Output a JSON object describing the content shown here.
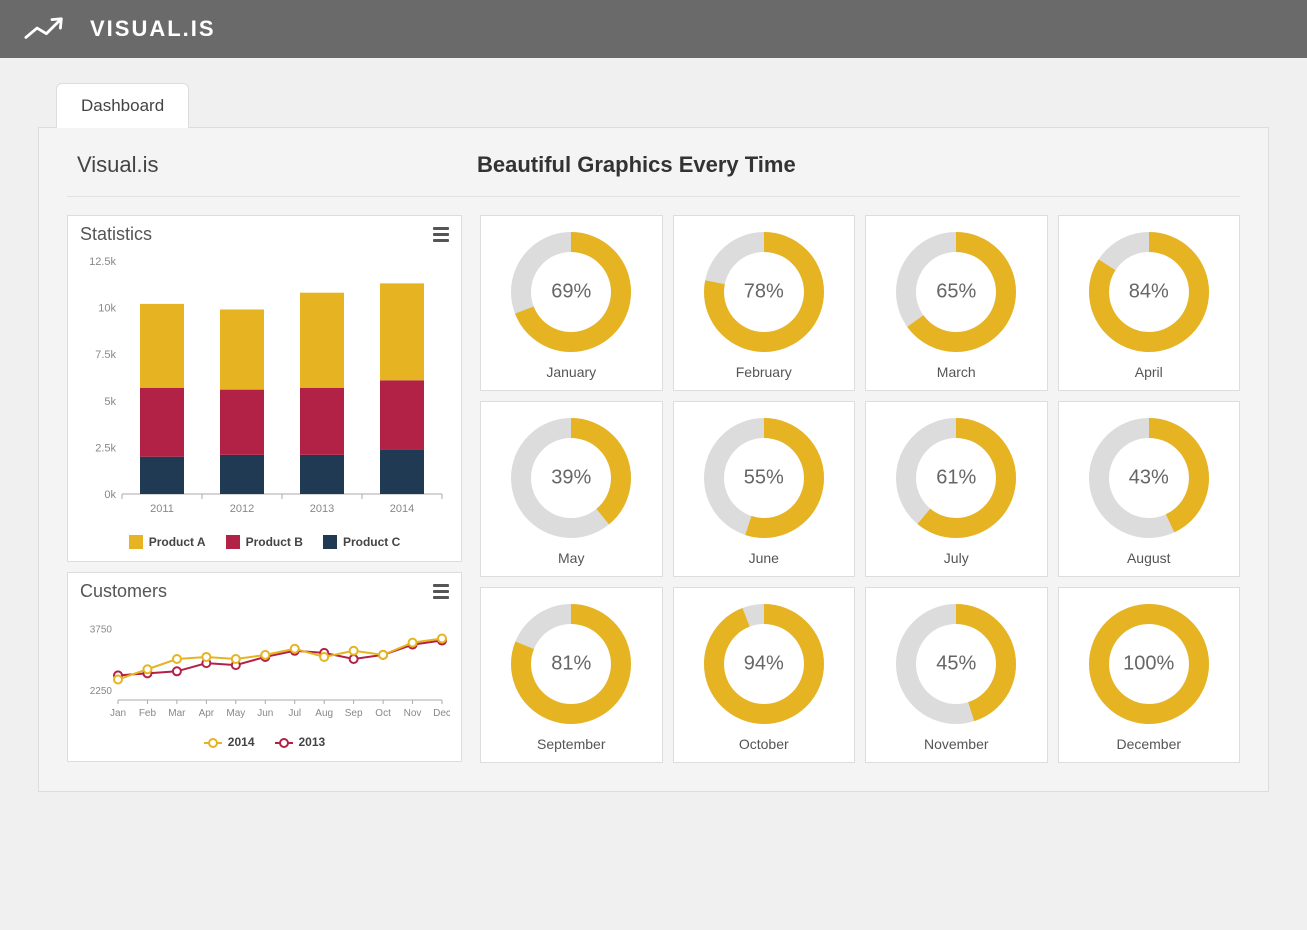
{
  "app": {
    "logo_text": "VISUAL.IS",
    "tab_label": "Dashboard",
    "brand_title": "Visual.is",
    "tagline": "Beautiful Graphics Every Time"
  },
  "stats_chart": {
    "title": "Statistics",
    "type": "stacked-bar",
    "categories": [
      "2011",
      "2012",
      "2013",
      "2014"
    ],
    "series": [
      {
        "name": "Product A",
        "color": "#e6b422",
        "values": [
          4500,
          4300,
          5100,
          5200
        ]
      },
      {
        "name": "Product B",
        "color": "#b22246",
        "values": [
          3700,
          3500,
          3600,
          3700
        ]
      },
      {
        "name": "Product C",
        "color": "#1f3a52",
        "values": [
          2000,
          2100,
          2100,
          2400
        ]
      }
    ],
    "y_ticks": [
      0,
      2500,
      5000,
      7500,
      10000,
      12500
    ],
    "y_tick_labels": [
      "0k",
      "2.5k",
      "5k",
      "7.5k",
      "10k",
      "12.5k"
    ],
    "ylim": [
      0,
      12500
    ],
    "bar_width": 0.55,
    "background_color": "#ffffff",
    "axis_color": "#aaaaaa",
    "label_color": "#888888",
    "label_fontsize": 11
  },
  "customers_chart": {
    "title": "Customers",
    "type": "line",
    "x_labels": [
      "Jan",
      "Feb",
      "Mar",
      "Apr",
      "May",
      "Jun",
      "Jul",
      "Aug",
      "Sep",
      "Oct",
      "Nov",
      "Dec"
    ],
    "series": [
      {
        "name": "2014",
        "color": "#e6b422",
        "values": [
          2500,
          2750,
          3000,
          3050,
          3000,
          3100,
          3250,
          3050,
          3200,
          3100,
          3400,
          3500
        ]
      },
      {
        "name": "2013",
        "color": "#b22246",
        "values": [
          2600,
          2650,
          2700,
          2900,
          2850,
          3050,
          3200,
          3150,
          3000,
          3100,
          3350,
          3450
        ]
      }
    ],
    "y_ticks": [
      2250,
      3750
    ],
    "y_tick_labels": [
      "2250",
      "3750"
    ],
    "ylim": [
      2000,
      4000
    ],
    "marker_radius": 4,
    "line_width": 2,
    "background_color": "#ffffff",
    "axis_color": "#aaaaaa",
    "label_color": "#888888",
    "label_fontsize": 10
  },
  "donuts": {
    "ring_color": "#e6b422",
    "track_color": "#dcdcdc",
    "thickness": 20,
    "radius": 60,
    "label_color": "#666666",
    "items": [
      {
        "label": "January",
        "pct": 69
      },
      {
        "label": "February",
        "pct": 78
      },
      {
        "label": "March",
        "pct": 65
      },
      {
        "label": "April",
        "pct": 84
      },
      {
        "label": "May",
        "pct": 39
      },
      {
        "label": "June",
        "pct": 55
      },
      {
        "label": "July",
        "pct": 61
      },
      {
        "label": "August",
        "pct": 43
      },
      {
        "label": "September",
        "pct": 81
      },
      {
        "label": "October",
        "pct": 94
      },
      {
        "label": "November",
        "pct": 45
      },
      {
        "label": "December",
        "pct": 100
      }
    ]
  }
}
